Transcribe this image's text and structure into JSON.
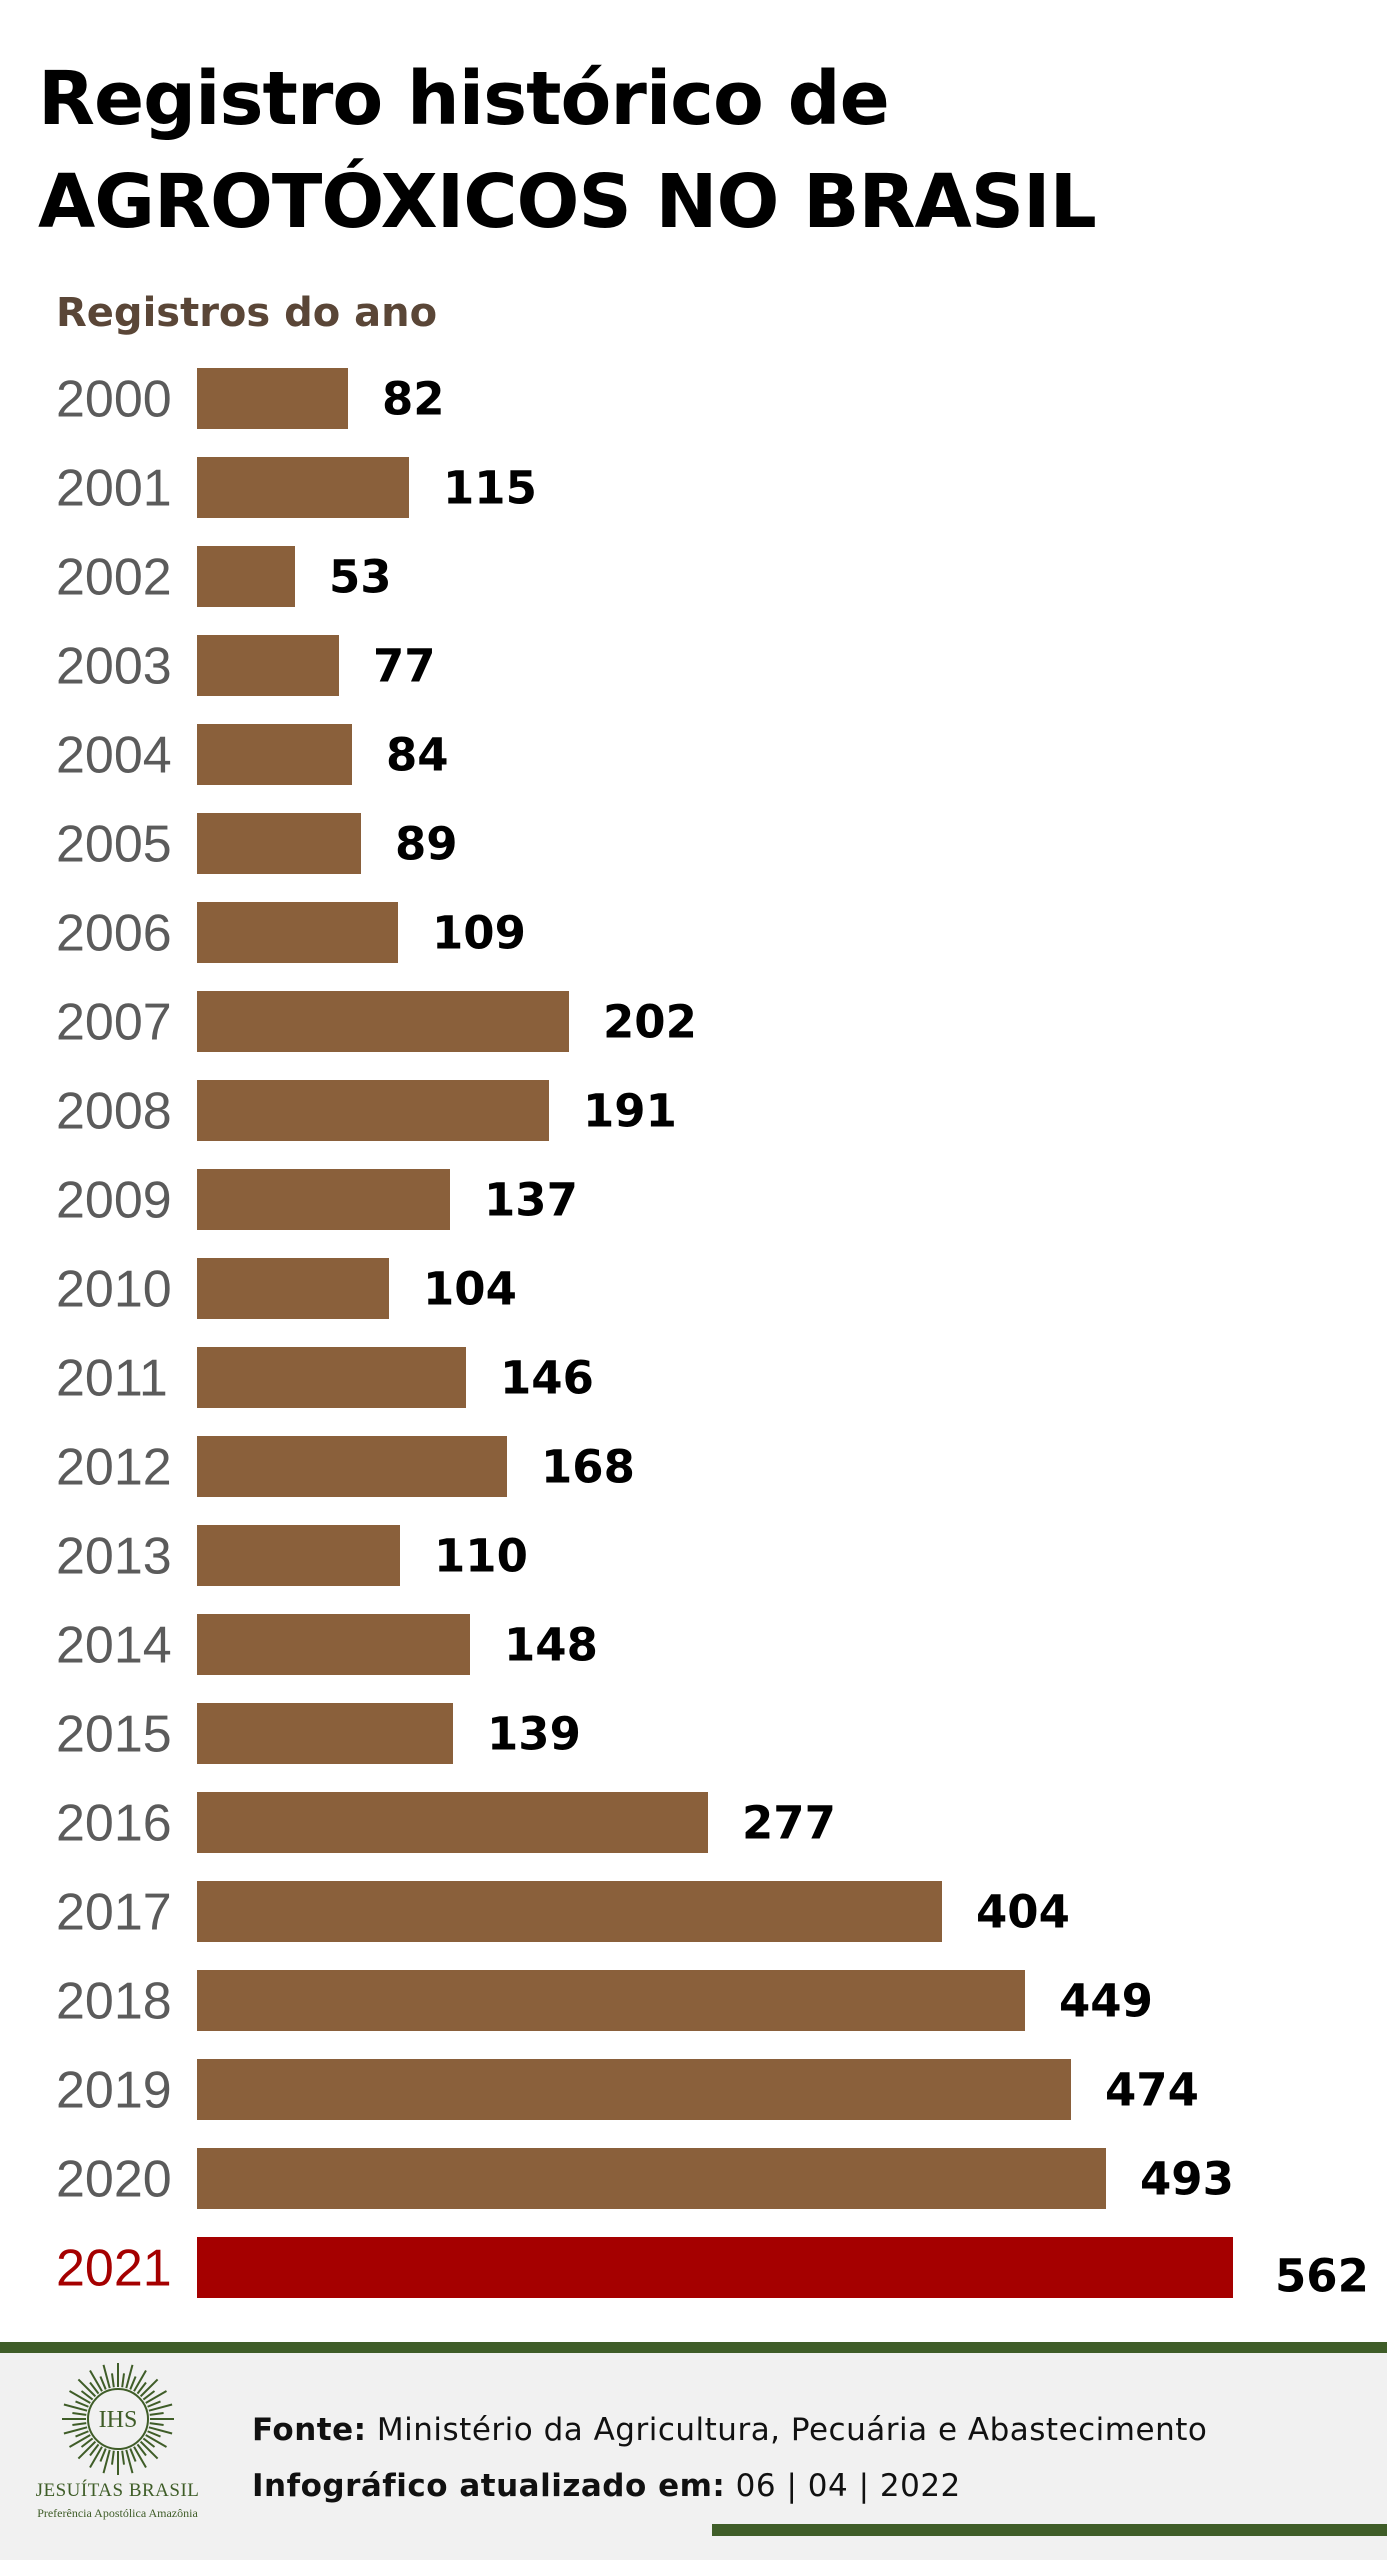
{
  "title": {
    "line1": "Registro histórico de",
    "line2": "AGROTÓXICOS NO BRASIL"
  },
  "colors": {
    "bar": "#8a603b",
    "highlight": "#a50000",
    "footer_green": "#3f5d28"
  },
  "chart_data": {
    "type": "bar",
    "orientation": "horizontal",
    "title": "Registro histórico de AGROTÓXICOS NO BRASIL",
    "series_label": "Registros do ano",
    "categories": [
      "2000",
      "2001",
      "2002",
      "2003",
      "2004",
      "2005",
      "2006",
      "2007",
      "2008",
      "2009",
      "2010",
      "2011",
      "2012",
      "2013",
      "2014",
      "2015",
      "2016",
      "2017",
      "2018",
      "2019",
      "2020",
      "2021"
    ],
    "values": [
      82,
      115,
      53,
      77,
      84,
      89,
      109,
      202,
      191,
      137,
      104,
      146,
      168,
      110,
      148,
      139,
      277,
      404,
      449,
      474,
      493,
      562
    ],
    "highlight_category": "2021",
    "xlim": [
      0,
      562
    ],
    "grid": false,
    "legend": "none"
  },
  "footer": {
    "source_label": "Fonte:",
    "source_value": "Ministério da Agricultura, Pecuária e Abastecimento",
    "updated_label": "Infográfico atualizado em:",
    "updated_value": "06 | 04 | 2022",
    "logo_name": "JESUÍTAS BRASIL",
    "logo_tagline": "Preferência Apostólica Amazônia",
    "logo_monogram": "IHS"
  }
}
